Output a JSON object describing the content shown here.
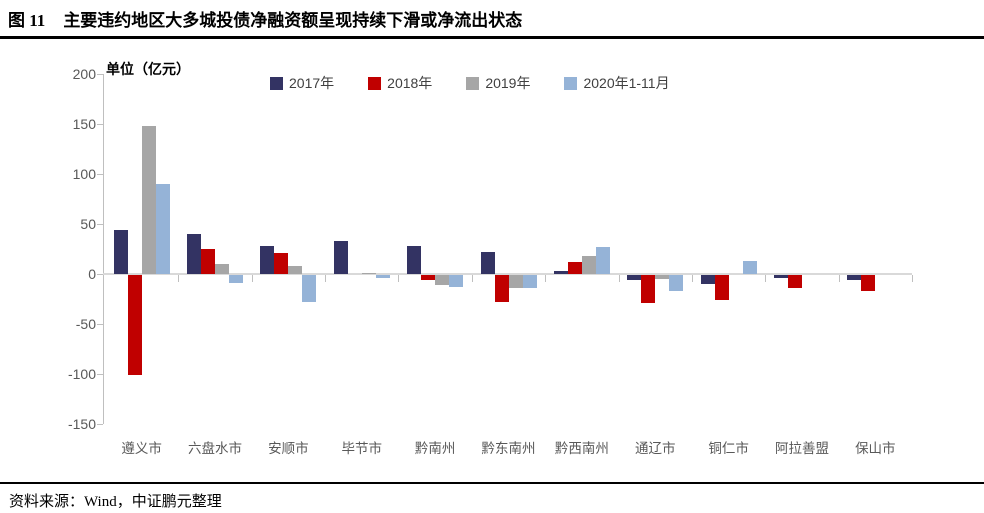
{
  "header": {
    "figure_label": "图 11",
    "title": "主要违约地区大多城投债净融资额呈现持续下滑或净流出状态"
  },
  "chart": {
    "unit_label": "单位（亿元）"
  },
  "footer": {
    "source": "资料来源：Wind，中证鹏元整理"
  },
  "colors": {
    "axis_line": "#bfbfbf",
    "zero_line": "#d9d9d9",
    "tick_text": "#595959"
  },
  "chart_data": {
    "type": "bar",
    "title": "主要违约地区大多城投债净融资额呈现持续下滑或净流出状态",
    "unit": "亿元",
    "ylabel": "单位（亿元）",
    "ylim": [
      -150,
      200
    ],
    "ytick_interval": 50,
    "yticks": [
      200,
      150,
      100,
      50,
      0,
      -50,
      -100,
      -150
    ],
    "legend_position": "top",
    "grid": false,
    "categories": [
      "遵义市",
      "六盘水市",
      "安顺市",
      "毕节市",
      "黔南州",
      "黔东南州",
      "黔西南州",
      "通辽市",
      "铜仁市",
      "阿拉善盟",
      "保山市"
    ],
    "series": [
      {
        "name": "2017年",
        "color": "#333363",
        "values": [
          44,
          40,
          28,
          33,
          28,
          22,
          3,
          -5,
          -9,
          -3,
          -5
        ]
      },
      {
        "name": "2018年",
        "color": "#c00000",
        "values": [
          -100,
          25,
          21,
          0,
          -5,
          -27,
          12,
          -28,
          -25,
          -13,
          -16
        ]
      },
      {
        "name": "2019年",
        "color": "#a6a6a6",
        "values": [
          148,
          10,
          8,
          1,
          -10,
          -13,
          18,
          -4,
          0,
          0,
          0
        ]
      },
      {
        "name": "2020年1-11月",
        "color": "#95b3d7",
        "values": [
          90,
          -8,
          -27,
          -3,
          -12,
          -13,
          27,
          -16,
          13,
          0,
          0
        ]
      }
    ]
  }
}
